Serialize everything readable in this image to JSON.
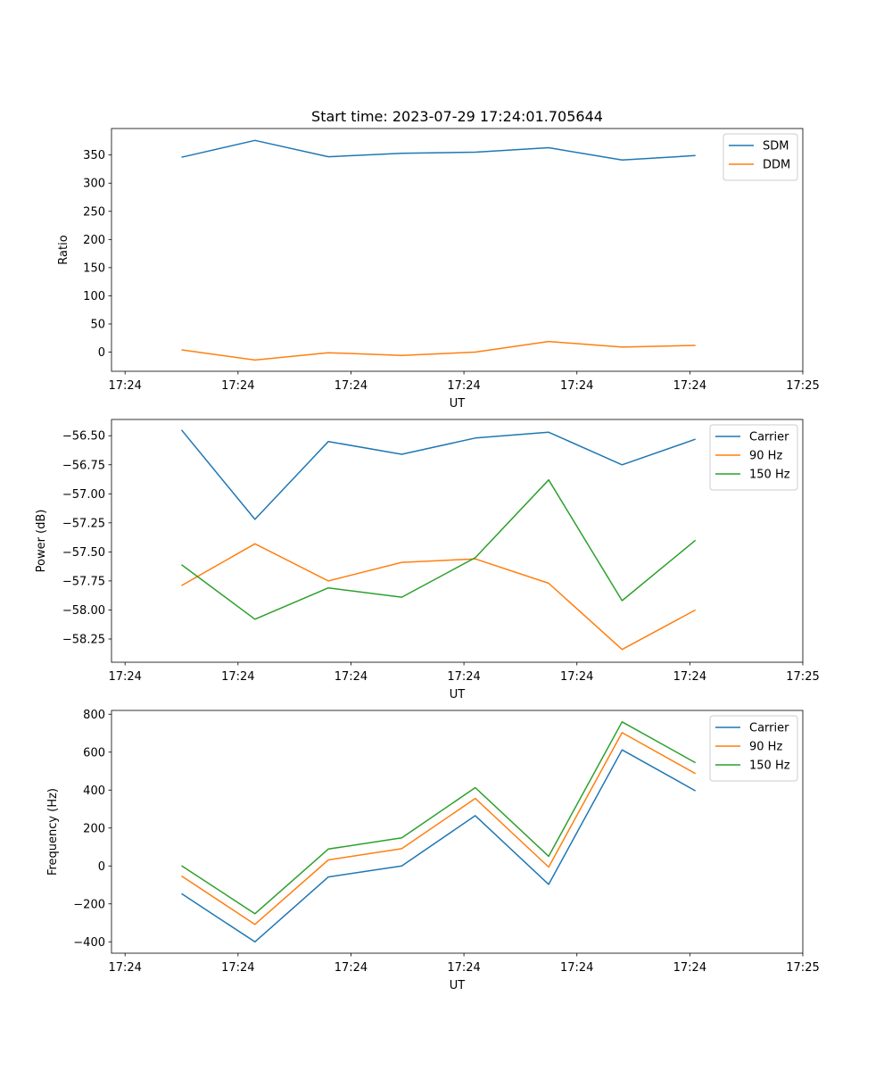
{
  "title": "Start time: 2023-07-29 17:24:01.705644",
  "colors": {
    "blue": "#1f77b4",
    "orange": "#ff7f0e",
    "green": "#2ca02c"
  },
  "chart_data": [
    {
      "type": "line",
      "xlabel": "UT",
      "ylabel": "Ratio",
      "x_tick_labels": [
        "17:24",
        "17:24",
        "17:24",
        "17:24",
        "17:24",
        "17:24",
        "17:25"
      ],
      "x_ticks": [
        0,
        1,
        2,
        3,
        4,
        5,
        6
      ],
      "xlim": [
        -0.12,
        6.0
      ],
      "x": [
        0.5,
        1.15,
        1.8,
        2.45,
        3.1,
        3.75,
        4.4,
        5.05
      ],
      "ylim": [
        -34,
        397
      ],
      "y_ticks": [
        0,
        50,
        100,
        150,
        200,
        250,
        300,
        350
      ],
      "y_tick_labels": [
        "0",
        "50",
        "100",
        "150",
        "200",
        "250",
        "300",
        "350"
      ],
      "legend_location": "upper-right",
      "series": [
        {
          "name": "SDM",
          "color": "#1f77b4",
          "values": [
            346,
            376,
            347,
            353,
            355,
            363,
            341,
            349
          ]
        },
        {
          "name": "DDM",
          "color": "#ff7f0e",
          "values": [
            4,
            -14,
            -1,
            -6,
            0,
            19,
            9,
            12
          ]
        }
      ]
    },
    {
      "type": "line",
      "xlabel": "UT",
      "ylabel": "Power (dB)",
      "x_tick_labels": [
        "17:24",
        "17:24",
        "17:24",
        "17:24",
        "17:24",
        "17:24",
        "17:25"
      ],
      "x_ticks": [
        0,
        1,
        2,
        3,
        4,
        5,
        6
      ],
      "xlim": [
        -0.12,
        6.0
      ],
      "x": [
        0.5,
        1.15,
        1.8,
        2.45,
        3.1,
        3.75,
        4.4,
        5.05
      ],
      "ylim": [
        -58.45,
        -56.36
      ],
      "y_ticks": [
        -58.25,
        -58.0,
        -57.75,
        -57.5,
        -57.25,
        -57.0,
        -56.75,
        -56.5
      ],
      "y_tick_labels": [
        "−58.25",
        "−58.00",
        "−57.75",
        "−57.50",
        "−57.25",
        "−57.00",
        "−56.75",
        "−56.50"
      ],
      "legend_location": "upper-right",
      "series": [
        {
          "name": "Carrier",
          "color": "#1f77b4",
          "values": [
            -56.45,
            -57.22,
            -56.55,
            -56.66,
            -56.52,
            -56.47,
            -56.75,
            -56.53
          ]
        },
        {
          "name": "90 Hz",
          "color": "#ff7f0e",
          "values": [
            -57.79,
            -57.43,
            -57.75,
            -57.59,
            -57.56,
            -57.77,
            -58.34,
            -58.0
          ]
        },
        {
          "name": "150 Hz",
          "color": "#2ca02c",
          "values": [
            -57.61,
            -58.08,
            -57.81,
            -57.89,
            -57.55,
            -56.88,
            -57.92,
            -57.4
          ]
        }
      ]
    },
    {
      "type": "line",
      "xlabel": "UT",
      "ylabel": "Frequency (Hz)",
      "x_tick_labels": [
        "17:24",
        "17:24",
        "17:24",
        "17:24",
        "17:24",
        "17:24",
        "17:25"
      ],
      "x_ticks": [
        0,
        1,
        2,
        3,
        4,
        5,
        6
      ],
      "xlim": [
        -0.12,
        6.0
      ],
      "x": [
        0.5,
        1.15,
        1.8,
        2.45,
        3.1,
        3.75,
        4.4,
        5.05
      ],
      "ylim": [
        -460,
        820
      ],
      "y_ticks": [
        -400,
        -200,
        0,
        200,
        400,
        600,
        800
      ],
      "y_tick_labels": [
        "−400",
        "−200",
        "0",
        "200",
        "400",
        "600",
        "800"
      ],
      "legend_location": "upper-right",
      "series": [
        {
          "name": "Carrier",
          "color": "#1f77b4",
          "values": [
            -146,
            -400,
            -58,
            0,
            265,
            -97,
            612,
            396
          ]
        },
        {
          "name": "90 Hz",
          "color": "#ff7f0e",
          "values": [
            -53,
            -308,
            32,
            91,
            356,
            -6,
            703,
            487
          ]
        },
        {
          "name": "150 Hz",
          "color": "#2ca02c",
          "values": [
            1,
            -252,
            89,
            148,
            413,
            51,
            760,
            544
          ]
        }
      ]
    }
  ]
}
